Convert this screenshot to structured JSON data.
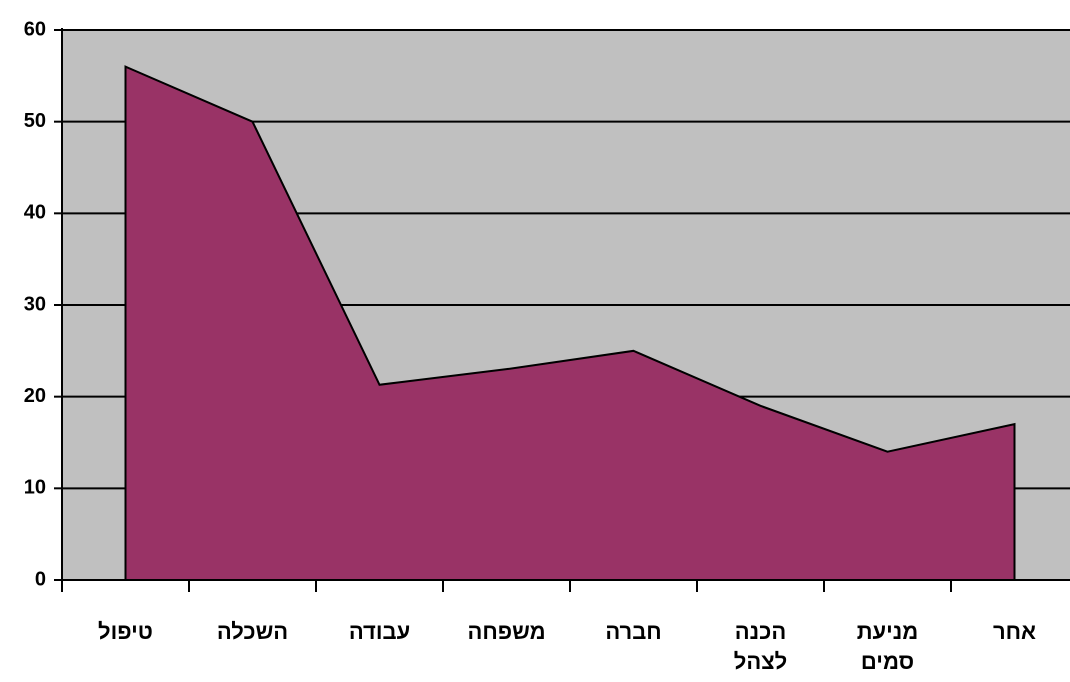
{
  "chart_data": {
    "type": "area",
    "categories": [
      "טיפול",
      "השכלה",
      "עבודה",
      "משפחה",
      "חברה",
      "הכנה\nלצהל",
      "מניעת\nסמים",
      "אחר"
    ],
    "values": [
      56,
      50,
      21.3,
      23,
      25,
      19,
      14,
      17
    ],
    "color": "#993366",
    "ylim": [
      0,
      60
    ],
    "yticks": [
      0,
      10,
      20,
      30,
      40,
      50,
      60
    ],
    "grid": true
  }
}
